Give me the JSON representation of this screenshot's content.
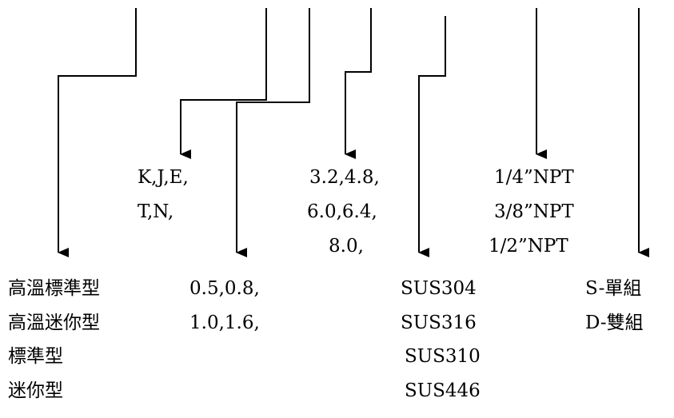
{
  "columns": {
    "type": {
      "items": [
        "高溫標準型",
        "高溫迷你型",
        "標準型",
        "迷你型"
      ]
    },
    "thermocouple": {
      "items": [
        "K,J,E,",
        "T,N,"
      ]
    },
    "wire_diameter": {
      "items": [
        "0.5,0.8,",
        "1.0,1.6,"
      ]
    },
    "sheath_diameter": {
      "items": [
        "3.2,4.8,",
        "6.0,6.4,",
        "8.0,"
      ]
    },
    "material": {
      "items": [
        "SUS304",
        "SUS316",
        "SUS310",
        "SUS446"
      ]
    },
    "thread": {
      "items": [
        "1/4”NPT",
        "3/8”NPT",
        "1/2”NPT"
      ]
    },
    "element_count": {
      "items": [
        "S-單組",
        "D-雙組"
      ]
    }
  }
}
